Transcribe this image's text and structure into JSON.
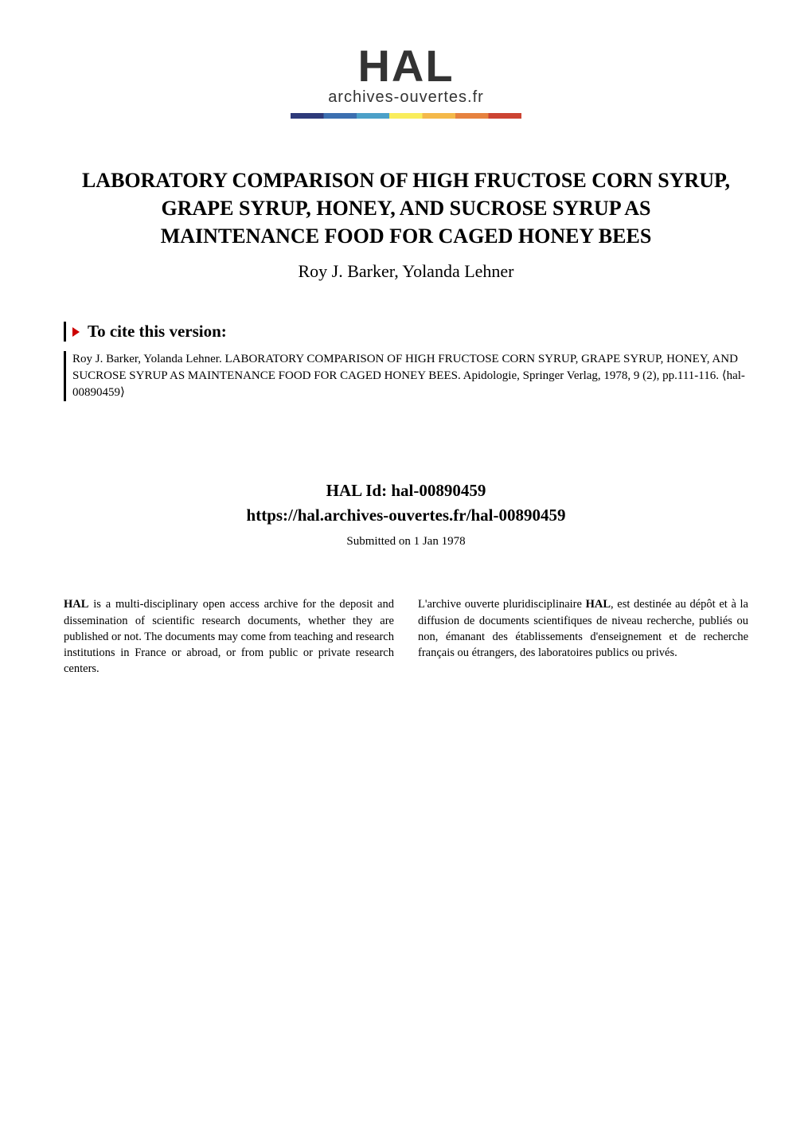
{
  "logo": {
    "acronym": "HAL",
    "tagline": "archives-ouvertes.fr",
    "gradient_colors": [
      "#2e3a7a",
      "#3c6fb0",
      "#4ca0c8",
      "#f9ed5c",
      "#f4b94a",
      "#e6823f",
      "#cc4433"
    ],
    "acronym_fontsize": 56,
    "tagline_fontsize": 20,
    "color": "#333333"
  },
  "paper": {
    "title": "LABORATORY COMPARISON OF HIGH FRUCTOSE CORN SYRUP, GRAPE SYRUP, HONEY, AND SUCROSE SYRUP AS MAINTENANCE FOOD FOR CAGED HONEY BEES",
    "authors": "Roy J. Barker, Yolanda Lehner",
    "title_fontsize": 26,
    "authors_fontsize": 22
  },
  "cite": {
    "header": "To cite this version:",
    "triangle_color": "#cc0000",
    "header_fontsize": 21,
    "body_fontsize": 15,
    "body": "Roy J. Barker, Yolanda Lehner. LABORATORY COMPARISON OF HIGH FRUCTOSE CORN SYRUP, GRAPE SYRUP, HONEY, AND SUCROSE SYRUP AS MAINTENANCE FOOD FOR CAGED HONEY BEES. Apidologie, Springer Verlag, 1978, 9 (2), pp.111-116. ⟨hal-00890459⟩"
  },
  "halid": {
    "label": "HAL Id: hal-00890459",
    "url": "https://hal.archives-ouvertes.fr/hal-00890459",
    "submitted": "Submitted on 1 Jan 1978",
    "label_fontsize": 21,
    "submitted_fontsize": 15
  },
  "footer": {
    "fontsize": 14.5,
    "left_bold": "HAL",
    "left_text": " is a multi-disciplinary open access archive for the deposit and dissemination of scientific research documents, whether they are published or not. The documents may come from teaching and research institutions in France or abroad, or from public or private research centers.",
    "right_pre": "L'archive ouverte pluridisciplinaire ",
    "right_bold": "HAL",
    "right_text": ", est destinée au dépôt et à la diffusion de documents scientifiques de niveau recherche, publiés ou non, émanant des établissements d'enseignement et de recherche français ou étrangers, des laboratoires publics ou privés."
  },
  "colors": {
    "background": "#ffffff",
    "text": "#000000",
    "border": "#000000"
  }
}
